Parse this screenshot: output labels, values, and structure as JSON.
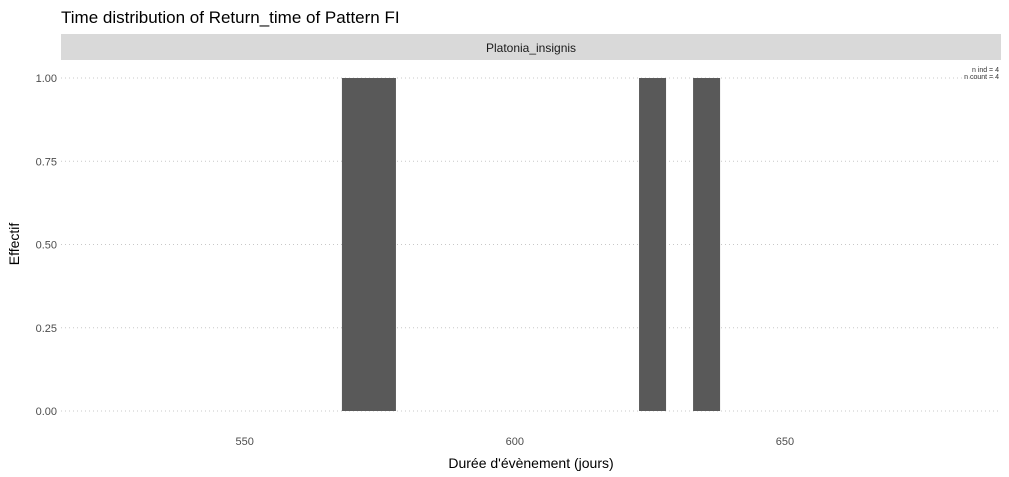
{
  "chart_data": {
    "type": "bar",
    "title": "Time distribution of Return_time of Pattern FI",
    "facet_label": "Platonia_insignis",
    "xlabel": "Durée d'évènement (jours)",
    "ylabel": "Effectif",
    "xlim": [
      516,
      690
    ],
    "ylim": [
      0,
      1
    ],
    "x_ticks": [
      550,
      600,
      650
    ],
    "x_tick_labels": [
      "550",
      "600",
      "650"
    ],
    "y_ticks": [
      0,
      0.25,
      0.5,
      0.75,
      1
    ],
    "y_tick_labels": [
      "0.00",
      "0.25",
      "0.50",
      "0.75",
      "1.00"
    ],
    "grid": "horizontal dotted",
    "bar_color": "#595959",
    "bars": [
      {
        "x_start": 568,
        "x_end": 578,
        "count": 1
      },
      {
        "x_start": 623,
        "x_end": 628,
        "count": 1
      },
      {
        "x_start": 633,
        "x_end": 638,
        "count": 1
      }
    ],
    "annotations": [
      "n ind = 4",
      "n count = 4"
    ]
  }
}
